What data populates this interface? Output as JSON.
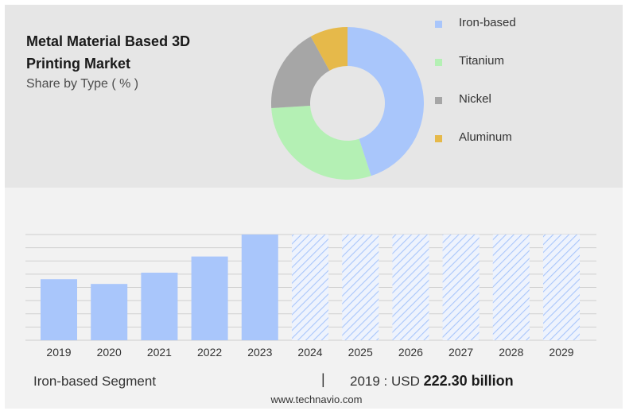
{
  "header": {
    "title": "Metal Material Based 3D Printing Market",
    "subtitle": "Share by Type ( % )"
  },
  "colors": {
    "iron": "#a9c6fb",
    "titanium": "#b4f0b4",
    "nickel": "#a6a6a6",
    "aluminum": "#e6b94a",
    "bar": "#a9c6fb",
    "forecast_hatch": "#a9c6fb"
  },
  "chart_data": [
    {
      "type": "pie",
      "subtype": "donut",
      "title": "Share by Type ( % )",
      "series": [
        {
          "name": "Iron-based",
          "value": 45,
          "color": "#a9c6fb"
        },
        {
          "name": "Titanium",
          "value": 29,
          "color": "#b4f0b4"
        },
        {
          "name": "Nickel",
          "value": 18,
          "color": "#a6a6a6"
        },
        {
          "name": "Aluminum",
          "value": 8,
          "color": "#e6b94a"
        }
      ],
      "legend_position": "right"
    },
    {
      "type": "bar",
      "categories": [
        "2019",
        "2020",
        "2021",
        "2022",
        "2023",
        "2024",
        "2025",
        "2026",
        "2027",
        "2028",
        "2029"
      ],
      "values": [
        222.3,
        205,
        246,
        305,
        385,
        null,
        null,
        null,
        null,
        null,
        null
      ],
      "forecast": [
        false,
        false,
        false,
        false,
        false,
        true,
        true,
        true,
        true,
        true,
        true
      ],
      "ylim": [
        0,
        385
      ],
      "grid": true,
      "xlabel": "",
      "ylabel": ""
    }
  ],
  "footer": {
    "segment": "Iron-based Segment",
    "separator": "|",
    "year_label": "2019 : USD",
    "value": "222.30 billion",
    "source": "www.technavio.com"
  }
}
